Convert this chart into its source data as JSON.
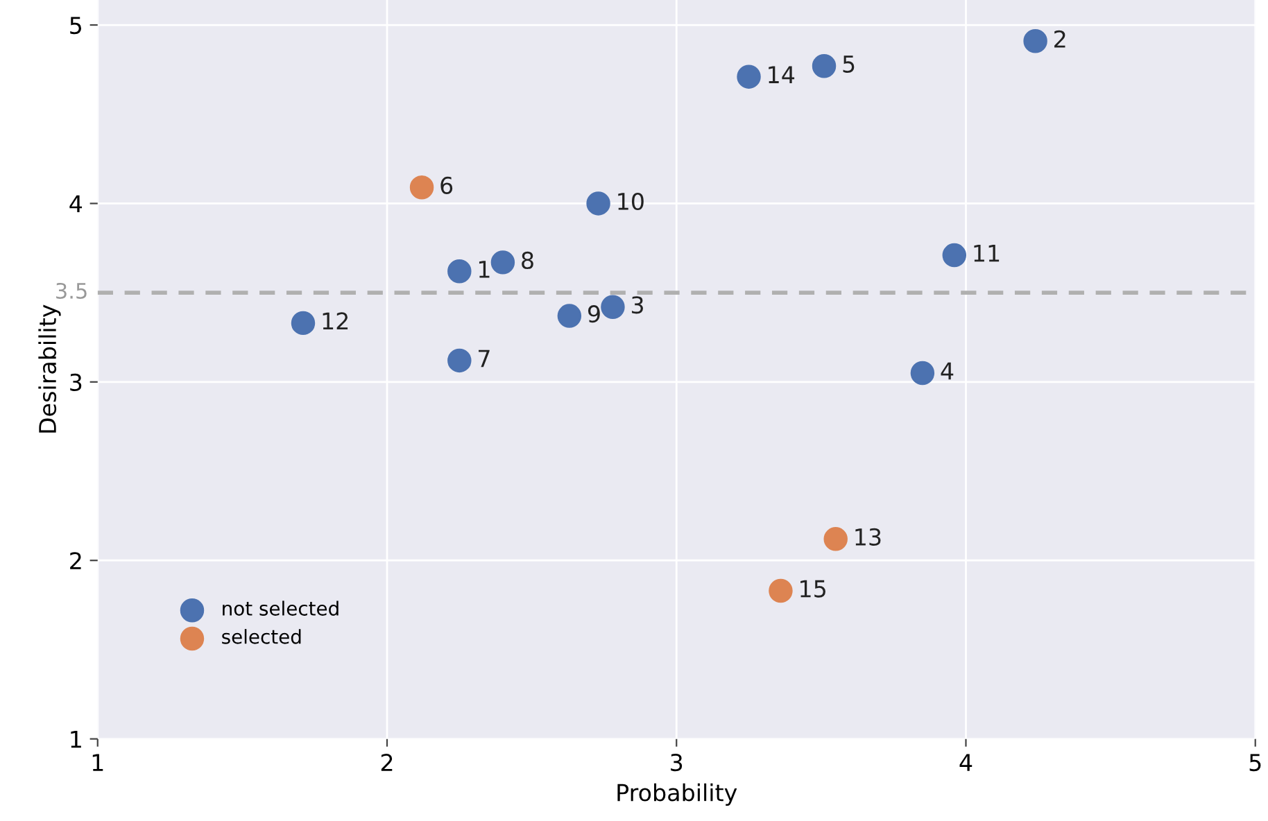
{
  "chart_data": {
    "type": "scatter",
    "xlabel": "Probability",
    "ylabel": "Desirability",
    "xlim": [
      1,
      5
    ],
    "ylim": [
      1,
      5.14
    ],
    "xticks": [
      1,
      2,
      3,
      4,
      5
    ],
    "yticks": [
      1,
      2,
      3,
      4,
      5
    ],
    "grid": true,
    "legend": "bottom left",
    "marker": "circle",
    "series": [
      {
        "name": "not selected",
        "color": "#4c72b0",
        "x": [
          2.25,
          4.24,
          2.78,
          3.85,
          3.51,
          2.25,
          2.4,
          2.63,
          2.73,
          3.96,
          1.71,
          3.25
        ],
        "values": [
          3.62,
          4.91,
          3.42,
          3.05,
          4.77,
          3.12,
          3.67,
          3.37,
          4.0,
          3.71,
          3.33,
          4.71
        ]
      },
      {
        "name": "selected",
        "color": "#dd8452",
        "x": [
          2.12,
          3.55,
          3.36
        ],
        "values": [
          4.09,
          2.12,
          1.83
        ]
      }
    ],
    "ref_lines": [
      {
        "axis": "y",
        "value": 3.5,
        "label": "3.5",
        "color": "#b0b0b0",
        "line_style": "dashed"
      }
    ],
    "annotations": [
      {
        "text": "1",
        "x": 2.25,
        "y": 3.62
      },
      {
        "text": "2",
        "x": 4.24,
        "y": 4.91
      },
      {
        "text": "3",
        "x": 2.78,
        "y": 3.42
      },
      {
        "text": "4",
        "x": 3.85,
        "y": 3.05
      },
      {
        "text": "5",
        "x": 3.51,
        "y": 4.77
      },
      {
        "text": "6",
        "x": 2.12,
        "y": 4.09
      },
      {
        "text": "7",
        "x": 2.25,
        "y": 3.12
      },
      {
        "text": "8",
        "x": 2.4,
        "y": 3.67
      },
      {
        "text": "9",
        "x": 2.63,
        "y": 3.37
      },
      {
        "text": "10",
        "x": 2.73,
        "y": 4.0
      },
      {
        "text": "11",
        "x": 3.96,
        "y": 3.71
      },
      {
        "text": "12",
        "x": 1.71,
        "y": 3.33
      },
      {
        "text": "13",
        "x": 3.55,
        "y": 2.12
      },
      {
        "text": "14",
        "x": 3.25,
        "y": 4.71
      },
      {
        "text": "15",
        "x": 3.36,
        "y": 1.83
      }
    ]
  }
}
